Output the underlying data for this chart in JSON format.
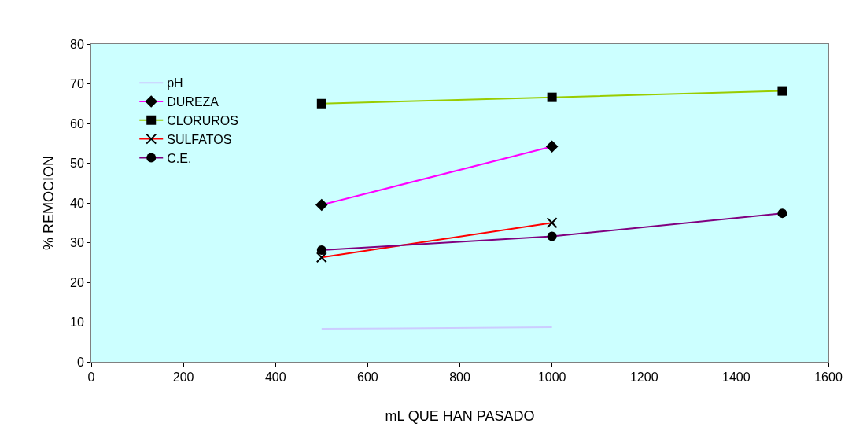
{
  "chart_data": {
    "type": "line",
    "xlabel": "mL QUE HAN PASADO",
    "ylabel": "% REMOCION",
    "x": [
      500,
      1000,
      1500
    ],
    "xlim": [
      0,
      1600
    ],
    "xticks": [
      0,
      200,
      400,
      600,
      800,
      1000,
      1200,
      1400,
      1600
    ],
    "ylim": [
      0,
      80
    ],
    "yticks": [
      0,
      10,
      20,
      30,
      40,
      50,
      60,
      70,
      80
    ],
    "grid": false,
    "legend": "top left",
    "series": [
      {
        "name": "pH",
        "color": "#ccccff",
        "marker": "none",
        "values": [
          8.3,
          8.7,
          null
        ]
      },
      {
        "name": "DUREZA",
        "color": "#ff00ff",
        "marker": "diamond",
        "values": [
          39.5,
          54.2,
          null
        ]
      },
      {
        "name": "CLORUROS",
        "color": "#99cc00",
        "marker": "square",
        "values": [
          65.0,
          66.6,
          68.2
        ]
      },
      {
        "name": "SULFATOS",
        "color": "#ff0000",
        "marker": "cross",
        "values": [
          26.3,
          35.0,
          null
        ]
      },
      {
        "name": "C.E.",
        "color": "#800080",
        "marker": "circle",
        "values": [
          28.1,
          31.6,
          37.4
        ]
      }
    ]
  }
}
